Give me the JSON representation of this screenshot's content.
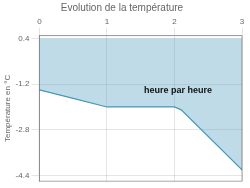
{
  "chart_data": {
    "type": "line",
    "title": "Evolution de la température",
    "ylabel": "Température en °C",
    "x": [
      0,
      0.5,
      1.0,
      1.5,
      2.0,
      2.1,
      3.0
    ],
    "values": [
      -1.4,
      -1.7,
      -2.0,
      -2.0,
      -2.0,
      -2.1,
      -4.2
    ],
    "color": "#4499bb",
    "xlim": [
      0,
      3
    ],
    "xticks": [
      0,
      1,
      2,
      3
    ],
    "ylim": [
      -4.6,
      0.5
    ],
    "yticks": [
      0.4,
      -1.2,
      -2.8,
      -4.4
    ],
    "grid": true,
    "annotations": [
      {
        "text": "heure par heure",
        "x": 1.55,
        "y": -1.25
      }
    ]
  }
}
